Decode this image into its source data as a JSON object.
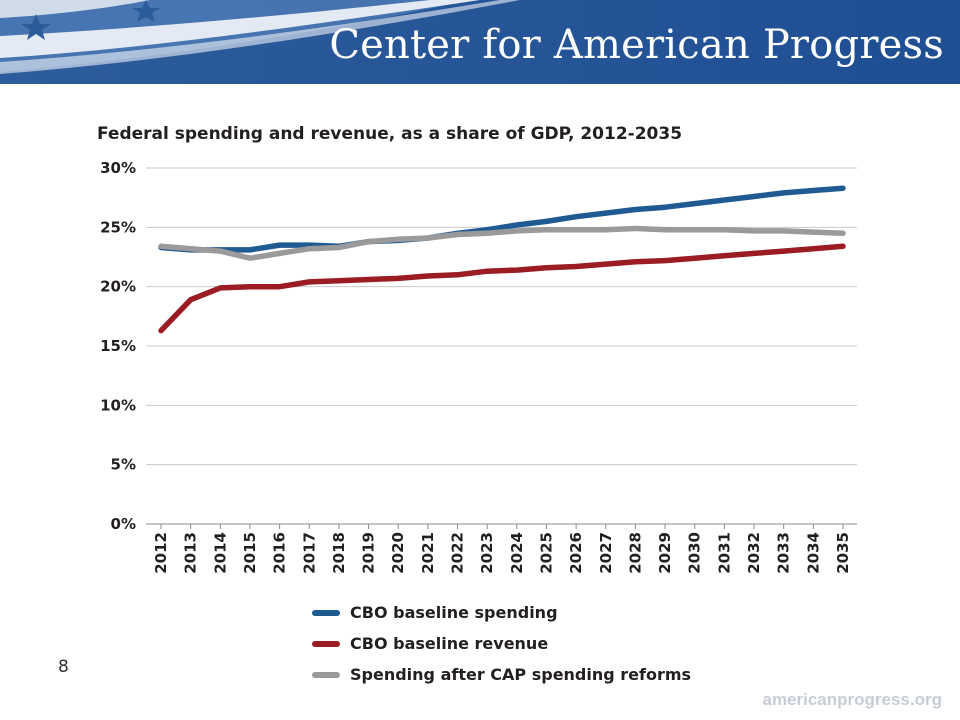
{
  "header": {
    "org_name": "Center for American Progress"
  },
  "chart_data": {
    "type": "line",
    "title": "Federal spending and revenue, as a share of GDP, 2012-2035",
    "x": [
      "2012",
      "2013",
      "2014",
      "2015",
      "2016",
      "2017",
      "2018",
      "2019",
      "2020",
      "2021",
      "2022",
      "2023",
      "2024",
      "2025",
      "2026",
      "2027",
      "2028",
      "2029",
      "2030",
      "2031",
      "2032",
      "2033",
      "2034",
      "2035"
    ],
    "ylim": [
      0,
      30
    ],
    "yticks": [
      "0%",
      "5%",
      "10%",
      "15%",
      "20%",
      "25%",
      "30%"
    ],
    "ytick_values": [
      0,
      5,
      10,
      15,
      20,
      25,
      30
    ],
    "grid": true,
    "legend_position": "bottom",
    "series": [
      {
        "name": "CBO baseline spending",
        "color": "#1f5a93",
        "values": [
          23.3,
          23.1,
          23.1,
          23.1,
          23.5,
          23.5,
          23.4,
          23.8,
          23.9,
          24.1,
          24.5,
          24.8,
          25.2,
          25.5,
          25.9,
          26.2,
          26.5,
          26.7,
          27.0,
          27.3,
          27.6,
          27.9,
          28.1,
          28.3
        ]
      },
      {
        "name": "CBO baseline revenue",
        "color": "#9b1c22",
        "values": [
          16.3,
          18.9,
          19.9,
          20.0,
          20.0,
          20.4,
          20.5,
          20.6,
          20.7,
          20.9,
          21.0,
          21.3,
          21.4,
          21.6,
          21.7,
          21.9,
          22.1,
          22.2,
          22.4,
          22.6,
          22.8,
          23.0,
          23.2,
          23.4
        ]
      },
      {
        "name": "Spending after CAP spending reforms",
        "color": "#9a9a9a",
        "values": [
          23.4,
          23.2,
          23.0,
          22.4,
          22.8,
          23.2,
          23.3,
          23.8,
          24.0,
          24.1,
          24.4,
          24.5,
          24.7,
          24.8,
          24.8,
          24.8,
          24.9,
          24.8,
          24.8,
          24.8,
          24.7,
          24.7,
          24.6,
          24.5
        ]
      }
    ]
  },
  "page": {
    "number": "8"
  },
  "footer": {
    "url": "americanprogress.org"
  }
}
